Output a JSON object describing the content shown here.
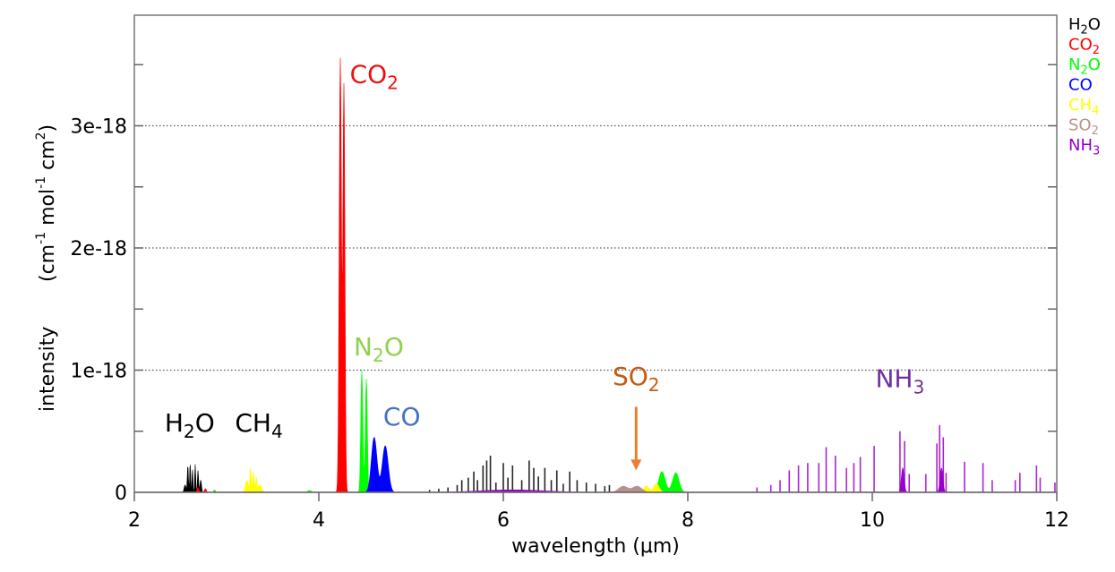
{
  "chart_data": {
    "type": "area",
    "xlabel": "wavelength (μm)",
    "ylabel": "intensity",
    "ylabel_units": {
      "open": "(cm",
      "sup1": "-1",
      "mid": " mol",
      "sup2": "-1",
      "mid2": " cm",
      "sup3": "2",
      "close": ")"
    },
    "xlim": [
      2,
      12
    ],
    "ylim": [
      0,
      3.9e-18
    ],
    "x_ticks": [
      2,
      4,
      6,
      8,
      10,
      12
    ],
    "x_tick_labels": [
      "2",
      "4",
      "6",
      "8",
      "10",
      "12"
    ],
    "y_ticks": [
      0,
      1e-18,
      2e-18,
      3e-18
    ],
    "y_tick_labels": [
      "0",
      "1e-18",
      "2e-18",
      "3e-18"
    ],
    "grid": "horizontal dotted at major y ticks",
    "legend_placement": "right",
    "series": [
      {
        "name": "H2O",
        "legend": {
          "base": "H",
          "sub": "2",
          "tail": "O"
        },
        "color": "#000000",
        "bands": [
          [
            2.58,
            2.2e-19,
            0.006
          ],
          [
            2.605,
            2.4e-19,
            0.005
          ],
          [
            2.63,
            1.9e-19,
            0.005
          ],
          [
            2.66,
            2.3e-19,
            0.005
          ],
          [
            2.69,
            1.8e-19,
            0.006
          ],
          [
            2.72,
            1e-19,
            0.008
          ],
          [
            2.55,
            6e-20,
            0.01
          ]
        ],
        "lines": [
          [
            5.2,
            2e-20
          ],
          [
            5.3,
            3e-20
          ],
          [
            5.4,
            4e-20
          ],
          [
            5.5,
            6e-20
          ],
          [
            5.55,
            1e-19
          ],
          [
            5.62,
            1.2e-19
          ],
          [
            5.68,
            1.7e-19
          ],
          [
            5.72,
            1e-19
          ],
          [
            5.78,
            2.2e-19
          ],
          [
            5.82,
            2.6e-19
          ],
          [
            5.86,
            3e-19
          ],
          [
            5.92,
            8e-20
          ],
          [
            6.0,
            2.4e-19
          ],
          [
            6.05,
            1.2e-19
          ],
          [
            6.1,
            2.2e-19
          ],
          [
            6.2,
            1e-19
          ],
          [
            6.28,
            2.6e-19
          ],
          [
            6.33,
            2e-19
          ],
          [
            6.38,
            1.3e-19
          ],
          [
            6.45,
            2e-19
          ],
          [
            6.52,
            1e-19
          ],
          [
            6.58,
            1.8e-19
          ],
          [
            6.65,
            7e-20
          ],
          [
            6.72,
            1.7e-19
          ],
          [
            6.8,
            1e-19
          ],
          [
            6.9,
            8e-20
          ],
          [
            7.0,
            7e-20
          ],
          [
            7.1,
            5e-20
          ],
          [
            7.15,
            6e-20
          ]
        ]
      },
      {
        "name": "CO2",
        "legend": {
          "base": "CO",
          "sub": "2",
          "tail": ""
        },
        "color": "#ff0000",
        "bands": [
          [
            4.233,
            3.55e-18,
            0.012
          ],
          [
            4.272,
            3.33e-18,
            0.011
          ],
          [
            2.69,
            4e-20,
            0.01
          ],
          [
            2.77,
            3e-20,
            0.01
          ],
          [
            4.45,
            2e-20,
            0.008
          ]
        ],
        "lines": []
      },
      {
        "name": "N2O",
        "legend": {
          "base": "N",
          "sub": "2",
          "tail": "O"
        },
        "color": "#00ff00",
        "bands": [
          [
            4.466,
            1e-18,
            0.011
          ],
          [
            4.515,
            9.3e-19,
            0.011
          ],
          [
            7.72,
            1.7e-19,
            0.035
          ],
          [
            7.87,
            1.6e-19,
            0.035
          ],
          [
            2.87,
            2e-20,
            0.01
          ],
          [
            3.9,
            1.5e-20,
            0.02
          ]
        ],
        "lines": []
      },
      {
        "name": "CO",
        "legend": {
          "base": "CO",
          "sub": "",
          "tail": ""
        },
        "color": "#0000ff",
        "bands": [
          [
            4.6,
            4.5e-19,
            0.03
          ],
          [
            4.72,
            3.8e-19,
            0.032
          ]
        ],
        "lines": []
      },
      {
        "name": "CH4",
        "legend": {
          "base": "CH",
          "sub": "4",
          "tail": ""
        },
        "color": "#ffff00",
        "bands": [
          [
            3.22,
            1e-19,
            0.015
          ],
          [
            3.26,
            2e-19,
            0.007
          ],
          [
            3.29,
            1.7e-19,
            0.007
          ],
          [
            3.32,
            1.2e-19,
            0.008
          ],
          [
            3.36,
            6e-20,
            0.02
          ],
          [
            7.55,
            5e-20,
            0.03
          ],
          [
            7.66,
            7e-20,
            0.03
          ]
        ],
        "lines": []
      },
      {
        "name": "SO2",
        "legend": {
          "base": "SO",
          "sub": "2",
          "tail": ""
        },
        "color": "#b8918c",
        "bands": [
          [
            7.3,
            5e-20,
            0.05
          ],
          [
            7.45,
            5e-20,
            0.05
          ]
        ],
        "lines": []
      },
      {
        "name": "NH3",
        "legend": {
          "base": "NH",
          "sub": "3",
          "tail": ""
        },
        "color": "#9900cc",
        "bands": [
          [
            10.33,
            2e-19,
            0.015
          ],
          [
            10.75,
            2e-19,
            0.015
          ],
          [
            6.1,
            2e-20,
            0.35
          ]
        ],
        "lines": [
          [
            8.75,
            4e-20
          ],
          [
            8.9,
            6e-20
          ],
          [
            9.0,
            1e-19
          ],
          [
            9.1,
            1.8e-19
          ],
          [
            9.2,
            2.2e-19
          ],
          [
            9.3,
            2.4e-19
          ],
          [
            9.42,
            2.4e-19
          ],
          [
            9.5,
            3.7e-19
          ],
          [
            9.6,
            3e-19
          ],
          [
            9.72,
            2e-19
          ],
          [
            9.8,
            2.4e-19
          ],
          [
            9.87,
            2.9e-19
          ],
          [
            10.02,
            3.8e-19
          ],
          [
            10.3,
            5e-19
          ],
          [
            10.35,
            4.2e-19
          ],
          [
            10.4,
            1.5e-19
          ],
          [
            10.58,
            1.5e-19
          ],
          [
            10.7,
            4e-19
          ],
          [
            10.73,
            5.5e-19
          ],
          [
            10.77,
            4.5e-19
          ],
          [
            10.8,
            1.6e-19
          ],
          [
            11.0,
            2.5e-19
          ],
          [
            11.2,
            2.4e-19
          ],
          [
            11.3,
            1e-19
          ],
          [
            11.55,
            1e-19
          ],
          [
            11.6,
            1.6e-19
          ],
          [
            11.78,
            2.2e-19
          ],
          [
            11.82,
            1.2e-19
          ],
          [
            11.98,
            8e-20
          ]
        ]
      }
    ],
    "annotations": [
      {
        "label": {
          "base": "H",
          "sub": "2",
          "tail": "O"
        },
        "color": "#000000",
        "x": 2.6,
        "y": 5e-19
      },
      {
        "label": {
          "base": "CH",
          "sub": "4",
          "tail": ""
        },
        "color": "#000000",
        "x": 3.35,
        "y": 5e-19
      },
      {
        "label": {
          "base": "CO",
          "sub": "2",
          "tail": ""
        },
        "color": "#ee1111",
        "x": 4.6,
        "y": 3.35e-18
      },
      {
        "label": {
          "base": "N",
          "sub": "2",
          "tail": "O"
        },
        "color": "#8fd14f",
        "x": 4.65,
        "y": 1.12e-18
      },
      {
        "label": {
          "base": "CO",
          "sub": "",
          "tail": ""
        },
        "color": "#4472c4",
        "x": 4.9,
        "y": 5.5e-19
      },
      {
        "label": {
          "base": "SO",
          "sub": "2",
          "tail": ""
        },
        "color": "#c55a11",
        "x": 7.44,
        "y": 8.8e-19,
        "arrow_from": [
          7.44,
          7e-19
        ],
        "arrow_to": [
          7.44,
          1.8e-19
        ],
        "arrow_color": "#ed7d31"
      },
      {
        "label": {
          "base": "NH",
          "sub": "3",
          "tail": ""
        },
        "color": "#7030a0",
        "x": 10.3,
        "y": 8.6e-19
      }
    ]
  }
}
